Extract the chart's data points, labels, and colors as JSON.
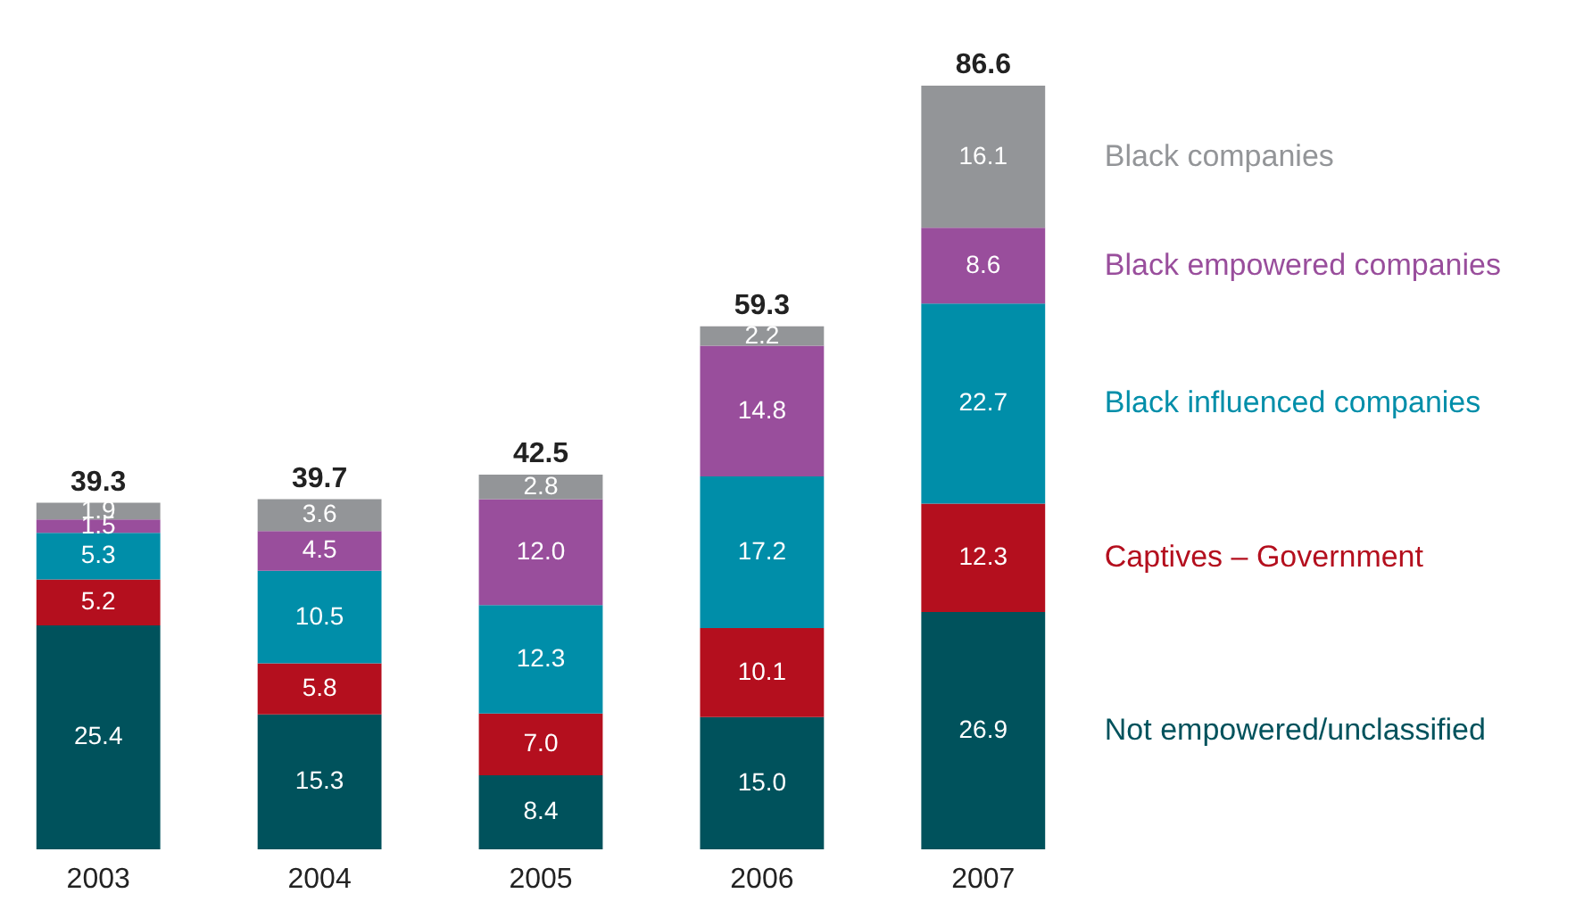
{
  "chart_data": {
    "type": "bar",
    "stacked": true,
    "legend": "right",
    "tick_labels": "x",
    "categories": [
      "2003",
      "2004",
      "2005",
      "2006",
      "2007"
    ],
    "series": [
      {
        "name": "Not empowered/unclassified",
        "color": "#00525c",
        "values": [
          25.4,
          15.3,
          8.4,
          15.0,
          26.9
        ],
        "value_labels": [
          "25.4",
          "15.3",
          "8.4",
          "15.0",
          "26.9"
        ]
      },
      {
        "name": "Captives – Government",
        "color": "#b40f1e",
        "values": [
          5.2,
          5.8,
          7.0,
          10.1,
          12.3
        ],
        "value_labels": [
          "5.2",
          "5.8",
          "7.0",
          "10.1",
          "12.3"
        ]
      },
      {
        "name": "Black influenced companies",
        "color": "#008ea9",
        "values": [
          5.3,
          10.5,
          12.3,
          17.2,
          22.7
        ],
        "value_labels": [
          "5.3",
          "10.5",
          "12.3",
          "17.2",
          "22.7"
        ]
      },
      {
        "name": "Black empowered companies",
        "color": "#994e9c",
        "values": [
          1.5,
          4.5,
          12.0,
          14.8,
          8.6
        ],
        "value_labels": [
          "1.5",
          "4.5",
          "12.0",
          "14.8",
          "8.6"
        ]
      },
      {
        "name": "Black companies",
        "color": "#939598",
        "values": [
          1.9,
          3.6,
          2.8,
          2.2,
          16.1
        ],
        "value_labels": [
          "1.9",
          "3.6",
          "2.8",
          "2.2",
          "16.1"
        ]
      }
    ],
    "totals": [
      "39.3",
      "39.7",
      "42.5",
      "59.3",
      "86.6"
    ]
  }
}
